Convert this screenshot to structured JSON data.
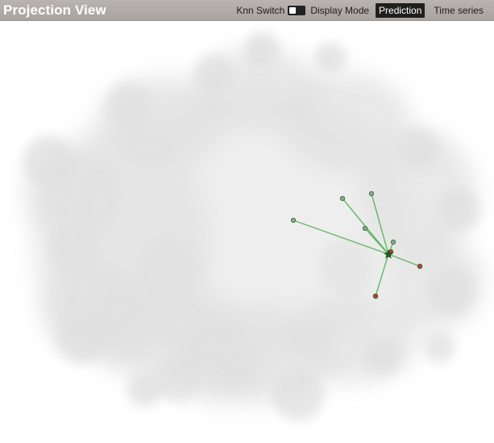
{
  "header": {
    "title": "Projection View",
    "knn_switch_label": "Knn Switch",
    "knn_switch_on": true,
    "display_mode_label": "Display Mode",
    "modes": [
      {
        "label": "Prediction",
        "active": true
      },
      {
        "label": "Time series",
        "active": false
      }
    ]
  },
  "colors": {
    "header_bg": "#aaa4a2",
    "density": "#dcdcdc",
    "knn_line": "#4caf50",
    "neighbor_point": "#9e9e9e",
    "highlight_point": "#d32f2f",
    "center_marker": "#1b5e20"
  },
  "projection": {
    "knn_center": "star",
    "neighbors": [
      {
        "kind": "normal"
      },
      {
        "kind": "normal"
      },
      {
        "kind": "normal"
      },
      {
        "kind": "normal"
      },
      {
        "kind": "normal"
      },
      {
        "kind": "highlight"
      },
      {
        "kind": "highlight"
      },
      {
        "kind": "highlight"
      }
    ]
  }
}
